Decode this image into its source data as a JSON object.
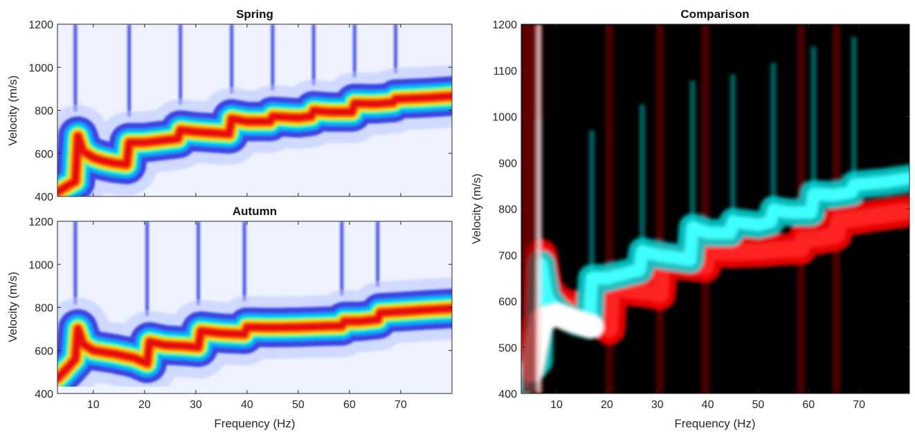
{
  "figure": {
    "colors": {
      "spring_background": "#eef2ff",
      "spring_peak": "#e81010",
      "comparison_background": "#000000",
      "comparison_spring_channel": "#00e5e5",
      "comparison_autumn_channel": "#ff0000",
      "comparison_overlap": "#ffffff"
    }
  },
  "chart_data": [
    {
      "id": "spring",
      "type": "heatmap",
      "title": "Spring",
      "xlabel": "",
      "ylabel": "Velocity (m/s)",
      "xlim": [
        3,
        80
      ],
      "ylim": [
        400,
        1200
      ],
      "xticks": [
        10,
        20,
        30,
        40,
        50,
        60,
        70
      ],
      "xticklabels": [
        "",
        "",
        "",
        "",
        "",
        "",
        ""
      ],
      "yticks": [
        400,
        600,
        800,
        1000,
        1200
      ],
      "yticklabels": [
        "400",
        "600",
        "800",
        "1000",
        "1200"
      ],
      "colormap": "jet-on-white",
      "mode_jumps_hz": [
        6.5,
        17,
        27,
        37,
        45,
        53,
        61,
        69
      ],
      "dispersion_ridge": {
        "x": [
          3,
          5,
          6.5,
          7,
          8,
          10,
          12,
          14,
          16.5,
          17,
          20,
          26.5,
          27,
          30,
          36.5,
          37,
          40,
          44.5,
          45,
          50,
          52.5,
          53,
          56,
          60.5,
          61,
          65,
          68.5,
          69,
          75,
          80
        ],
        "y": [
          420,
          450,
          470,
          680,
          610,
          580,
          565,
          555,
          548,
          650,
          650,
          668,
          708,
          700,
          690,
          760,
          748,
          748,
          772,
          765,
          772,
          798,
          792,
          792,
          832,
          830,
          836,
          852,
          858,
          866
        ]
      }
    },
    {
      "id": "autumn",
      "type": "heatmap",
      "title": "Autumn",
      "xlabel": "Frequency (Hz)",
      "ylabel": "Velocity (m/s)",
      "xlim": [
        3,
        80
      ],
      "ylim": [
        400,
        1200
      ],
      "xticks": [
        10,
        20,
        30,
        40,
        50,
        60,
        70
      ],
      "xticklabels": [
        "10",
        "20",
        "30",
        "40",
        "50",
        "60",
        "70"
      ],
      "yticks": [
        400,
        600,
        800,
        1000,
        1200
      ],
      "yticklabels": [
        "400",
        "600",
        "800",
        "1000",
        "1200"
      ],
      "colormap": "jet-on-white",
      "mode_jumps_hz": [
        6.5,
        20.5,
        30.5,
        39.5,
        58.5,
        65.5
      ],
      "dispersion_ridge": {
        "x": [
          3,
          5,
          6.5,
          7,
          8,
          10,
          14,
          18,
          20.5,
          21,
          24,
          28,
          30.5,
          31,
          35,
          39.5,
          40,
          45,
          50,
          55,
          58.5,
          59,
          62,
          65.5,
          66,
          70,
          75,
          80
        ],
        "y": [
          470,
          520,
          560,
          700,
          630,
          600,
          585,
          565,
          540,
          640,
          625,
          620,
          615,
          690,
          680,
          675,
          708,
          706,
          708,
          712,
          714,
          735,
          735,
          744,
          775,
          780,
          788,
          795
        ]
      }
    },
    {
      "id": "comparison",
      "type": "heatmap",
      "title": "Comparison",
      "xlabel": "Frequency (Hz)",
      "ylabel": "Velocity (m/s)",
      "xlim": [
        3,
        80
      ],
      "ylim": [
        400,
        1200
      ],
      "xticks": [
        10,
        20,
        30,
        40,
        50,
        60,
        70
      ],
      "xticklabels": [
        "10",
        "20",
        "30",
        "40",
        "50",
        "60",
        "70"
      ],
      "yticks": [
        400,
        500,
        600,
        700,
        800,
        900,
        1000,
        1100,
        1200
      ],
      "yticklabels": [
        "400",
        "500",
        "600",
        "700",
        "800",
        "900",
        "1000",
        "1100",
        "1200"
      ],
      "colormap": "red-cyan-overlay"
    }
  ]
}
